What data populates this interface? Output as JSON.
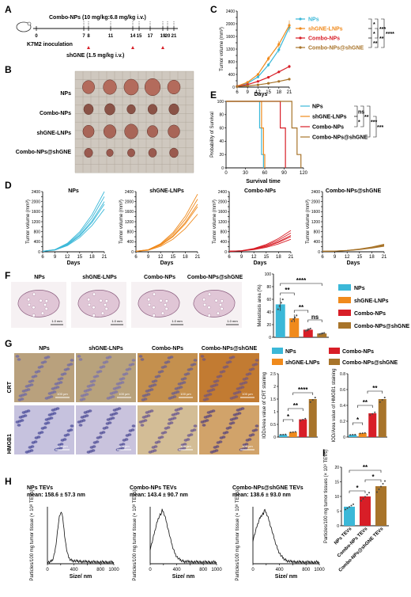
{
  "colors": {
    "nps": "#3bb8d8",
    "shgne": "#f08a1c",
    "combo": "#d81e27",
    "combo_shgne": "#a8742a",
    "axis": "#111111"
  },
  "panel_labels": [
    "A",
    "B",
    "C",
    "D",
    "E",
    "F",
    "G",
    "H",
    "I"
  ],
  "panel_a": {
    "treatment_label": "Combo-NPs (10 mg/kg:6.8 mg/kg i.v.)",
    "inoculation_label": "K7M2 inoculation",
    "shgne_label": "shGNE (1.5 mg/kg i.v.)",
    "days": [
      "0",
      "7",
      "8",
      "11",
      "14",
      "15",
      "17",
      "19",
      "20",
      "21"
    ]
  },
  "panel_b": {
    "rows": [
      "NPs",
      "Combo-NPs",
      "shGNE-LNPs",
      "Combo-NPs@shGNE"
    ],
    "tumors_per_row": 5
  },
  "groups": [
    "NPs",
    "shGNE-LNPs",
    "Combo-NPs",
    "Combo-NPs@shGNE"
  ],
  "chart_data": [
    {
      "id": "C",
      "type": "line",
      "xlabel": "Days",
      "ylabel": "Tumor volume (mm³)",
      "x": [
        6,
        9,
        12,
        15,
        18,
        21
      ],
      "xlim": [
        6,
        21
      ],
      "ylim": [
        0,
        2400
      ],
      "yticks": [
        0,
        200,
        400,
        600,
        800,
        1000,
        1200,
        1400,
        1600,
        1800,
        2000,
        2200,
        2400
      ],
      "series": [
        {
          "name": "NPs",
          "color": "#3bb8d8",
          "values": [
            30,
            120,
            320,
            700,
            1180,
            1880
          ]
        },
        {
          "name": "shGNE-LNPs",
          "color": "#f08a1c",
          "values": [
            30,
            150,
            400,
            900,
            1350,
            1950
          ]
        },
        {
          "name": "Combo-NPs",
          "color": "#d81e27",
          "values": [
            25,
            80,
            180,
            310,
            480,
            650
          ]
        },
        {
          "name": "Combo-NPs@shGNE",
          "color": "#a8742a",
          "values": [
            20,
            40,
            70,
            120,
            180,
            250
          ]
        }
      ],
      "significance": [
        "*",
        "*",
        "**",
        "***",
        "**",
        "****"
      ]
    },
    {
      "id": "E",
      "type": "line",
      "xlabel": "Survival time",
      "ylabel": "Probability of Survival",
      "xlim": [
        0,
        120
      ],
      "ylim": [
        0,
        100
      ],
      "xticks": [
        0,
        30,
        60,
        90,
        120
      ],
      "yticks": [
        0,
        20,
        40,
        60,
        80,
        100
      ],
      "series": [
        {
          "name": "NPs",
          "color": "#3bb8d8",
          "x": [
            0,
            52,
            52,
            55,
            55,
            58,
            58
          ],
          "values": [
            100,
            100,
            60,
            60,
            20,
            20,
            0
          ]
        },
        {
          "name": "shGNE-LNPs",
          "color": "#f08a1c",
          "x": [
            0,
            55,
            55,
            58,
            58,
            60,
            60
          ],
          "values": [
            100,
            100,
            60,
            60,
            20,
            20,
            0
          ]
        },
        {
          "name": "Combo-NPs",
          "color": "#d81e27",
          "x": [
            0,
            84,
            84,
            92,
            92
          ],
          "values": [
            100,
            100,
            60,
            60,
            0
          ]
        },
        {
          "name": "Combo-NPs@shGNE",
          "color": "#a8742a",
          "x": [
            0,
            102,
            102,
            110,
            110,
            116,
            116
          ],
          "values": [
            100,
            100,
            60,
            60,
            20,
            20,
            0
          ]
        }
      ],
      "significance": [
        "ns",
        "*",
        "**",
        "***",
        "***"
      ]
    },
    {
      "id": "D",
      "type": "line",
      "panels": [
        {
          "title": "NPs",
          "color": "#3bb8d8",
          "final": [
            1700,
            2000,
            2200,
            2400,
            1900
          ]
        },
        {
          "title": "shGNE-LNPs",
          "color": "#f08a1c",
          "final": [
            1500,
            1800,
            2100,
            1900,
            2300
          ]
        },
        {
          "title": "Combo-NPs",
          "color": "#d81e27",
          "final": [
            500,
            650,
            750,
            600,
            850
          ]
        },
        {
          "title": "Combo-NPs@shGNE",
          "color": "#a8742a",
          "final": [
            220,
            260,
            300,
            240,
            280
          ]
        }
      ],
      "x": [
        6,
        9,
        12,
        15,
        18,
        21
      ],
      "xlim": [
        6,
        21
      ],
      "ylim": [
        0,
        2400
      ],
      "xticks": [
        6,
        9,
        12,
        15,
        18,
        21
      ],
      "yticks": [
        0,
        200,
        400,
        600,
        800,
        1000,
        1200,
        1400,
        1600,
        1800,
        2000,
        2200,
        2400
      ],
      "xlabel": "Days",
      "ylabel": "Tumor volume (mm³)"
    },
    {
      "id": "F",
      "type": "bar",
      "ylabel": "Metastasis area (%)",
      "categories": [
        "NPs",
        "shGNE-LNPs",
        "Combo-NPs",
        "Combo-NPs@shGNE"
      ],
      "values": [
        52,
        30,
        12,
        6
      ],
      "ylim": [
        0,
        100
      ],
      "yticks": [
        0,
        20,
        40,
        60,
        80,
        100
      ],
      "significance": [
        "**",
        "**",
        "ns",
        "****"
      ]
    },
    {
      "id": "G1",
      "type": "bar",
      "ylabel": "IOD/Area value of CRT staining",
      "categories": [
        "NPs",
        "shGNE-LNPs",
        "Combo-NPs",
        "Combo-NPs@shGNE"
      ],
      "values": [
        0.1,
        0.2,
        0.7,
        1.5
      ],
      "ylim": [
        0,
        2.5
      ],
      "yticks": [
        0.0,
        0.5,
        1.0,
        1.5,
        2.0,
        2.5
      ],
      "significance": [
        "*",
        "**",
        "****"
      ]
    },
    {
      "id": "G2",
      "type": "bar",
      "ylabel": "IOD/Area value of HMGB1 staining",
      "categories": [
        "NPs",
        "shGNE-LNPs",
        "Combo-NPs",
        "Combo-NPs@shGNE"
      ],
      "values": [
        0.03,
        0.05,
        0.3,
        0.48
      ],
      "ylim": [
        0,
        0.8
      ],
      "yticks": [
        0.0,
        0.2,
        0.4,
        0.6,
        0.8
      ],
      "significance": [
        "*",
        "**",
        "**"
      ]
    },
    {
      "id": "I",
      "type": "bar",
      "ylabel": "Particles/100 mg tumor tissues (× 10⁸ TEVs)",
      "categories": [
        "NPs TEVs",
        "Combo-NPs TEVs",
        "Combo-NPs@shGNE TEVs"
      ],
      "values": [
        6.5,
        10,
        13.5
      ],
      "colors": [
        "#3bb8d8",
        "#d81e27",
        "#a8742a"
      ],
      "ylim": [
        0,
        20
      ],
      "yticks": [
        0,
        5,
        10,
        15,
        20
      ],
      "significance": [
        "*",
        "*",
        "**"
      ]
    }
  ],
  "panel_f": {
    "titles": [
      "NPs",
      "shGNE-LNPs",
      "Combo-NPs",
      "Combo-NPs@shGNE"
    ],
    "scale": [
      "1.0 mm",
      "1.0 mm",
      "1.0 mm",
      "1.0 mm"
    ]
  },
  "panel_g": {
    "col_titles": [
      "NPs",
      "shGNE-LNPs",
      "Combo-NPs",
      "Combo-NPs@shGNE"
    ],
    "row_labels": [
      "CRT",
      "HMGB1"
    ],
    "scale": "100 µm"
  },
  "panel_h": {
    "plots": [
      {
        "title": "NPs TEVs",
        "mean": "mean: 158.6 ± 57.3 nm"
      },
      {
        "title": "Combo-NPs TEVs",
        "mean": "mean: 143.4 ± 90.7 nm"
      },
      {
        "title": "Combo-NPs@shGNE TEVs",
        "mean": "mean: 138.6 ± 93.0 nm"
      }
    ],
    "xlabel": "Size/ nm",
    "ylabel": "Particles/100 mg tumor tissue (× 10⁸ TEVs)",
    "xticks": [
      "0",
      "200",
      "400",
      "600",
      "800",
      "1000"
    ]
  }
}
